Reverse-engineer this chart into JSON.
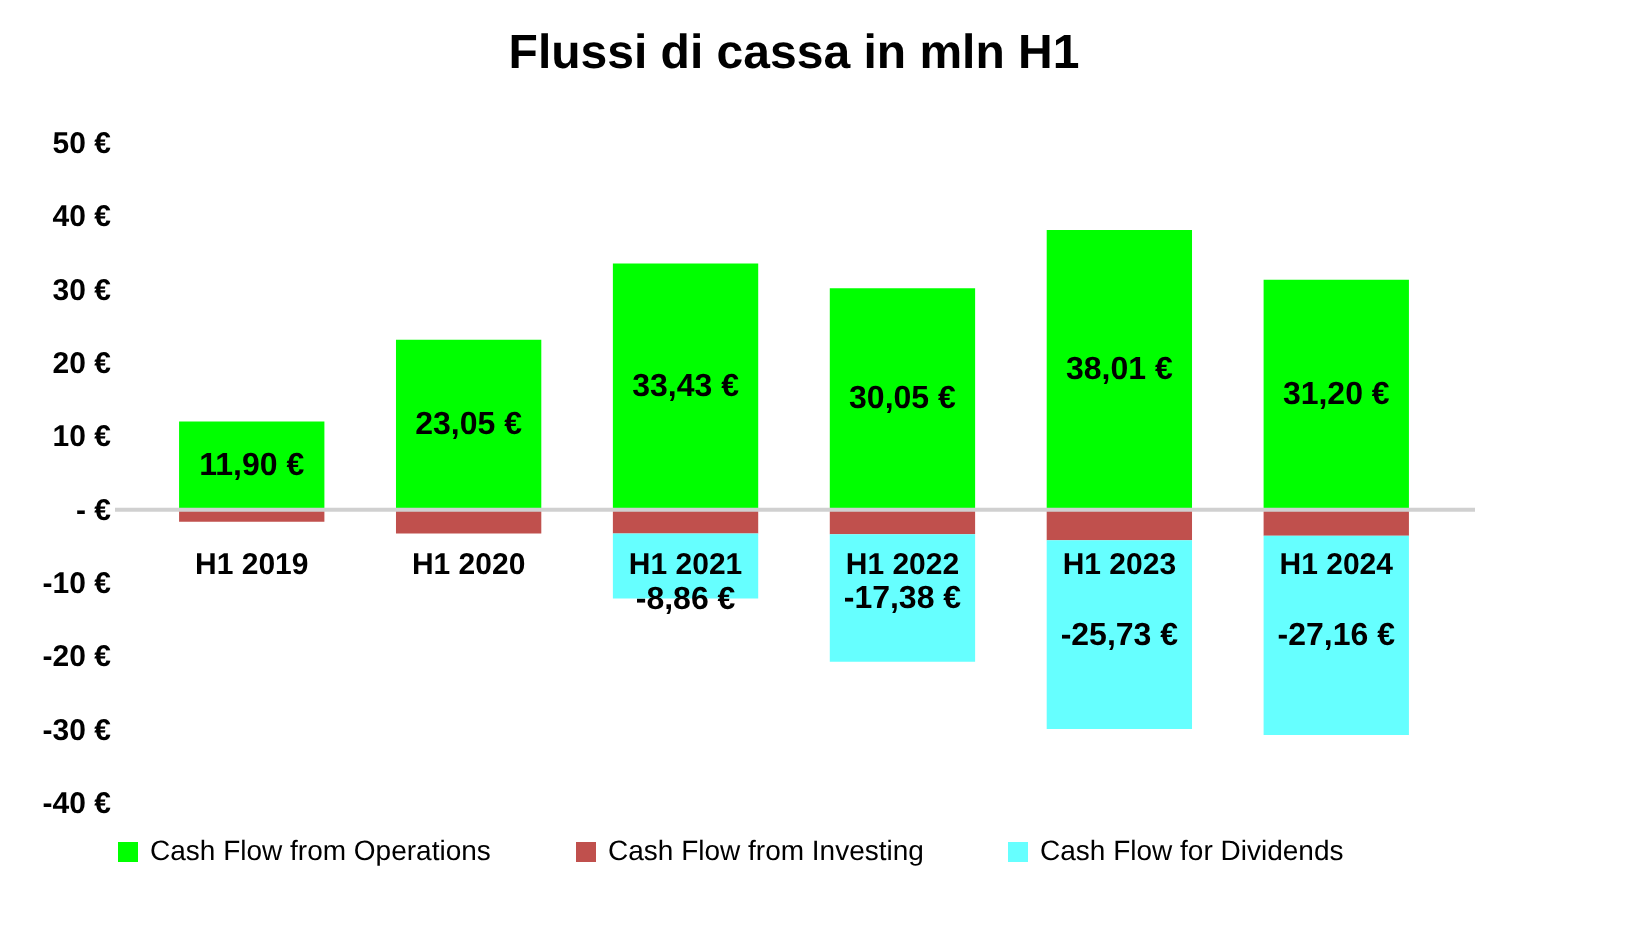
{
  "chart_data": {
    "type": "bar",
    "title": "Flussi di cassa in mln H1",
    "stacked": true,
    "categories": [
      "H1 2019",
      "H1 2020",
      "H1 2021",
      "H1 2022",
      "H1 2023",
      "H1 2024"
    ],
    "series": [
      {
        "name": "Cash Flow from Operations",
        "color": "#00ff00",
        "values": [
          11.9,
          23.05,
          33.43,
          30.05,
          38.01,
          31.2
        ],
        "value_labels": [
          "11,90 €",
          "23,05 €",
          "33,43 €",
          "30,05 €",
          "38,01 €",
          "31,20 €"
        ]
      },
      {
        "name": "Cash Flow from Investing",
        "color": "#c0504d",
        "values": [
          -1.8,
          -3.4,
          -3.4,
          -3.5,
          -4.3,
          -3.7
        ]
      },
      {
        "name": "Cash Flow for Dividends",
        "color": "#66ffff",
        "values": [
          null,
          null,
          -8.86,
          -17.38,
          -25.73,
          -27.16
        ],
        "value_labels": [
          null,
          null,
          "-8,86 €",
          "-17,38 €",
          "-25,73 €",
          "-27,16 €"
        ]
      }
    ],
    "ylim": [
      -40,
      50
    ],
    "yticks": [
      {
        "value": -40,
        "label": "-40 €"
      },
      {
        "value": -30,
        "label": "-30 €"
      },
      {
        "value": -20,
        "label": "-20 €"
      },
      {
        "value": -10,
        "label": "-10 €"
      },
      {
        "value": 0,
        "label": "- €"
      },
      {
        "value": 10,
        "label": "10 €"
      },
      {
        "value": 20,
        "label": "20 €"
      },
      {
        "value": 30,
        "label": "30 €"
      },
      {
        "value": 40,
        "label": "40 €"
      },
      {
        "value": 50,
        "label": "50 €"
      }
    ],
    "grid": false,
    "legend": "bottom"
  }
}
